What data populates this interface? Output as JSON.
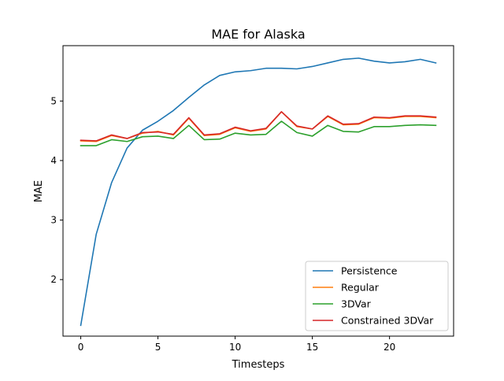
{
  "chart_data": {
    "type": "line",
    "title": "MAE for Alaska",
    "xlabel": "Timesteps",
    "ylabel": "MAE",
    "xlim": [
      -1.15,
      24.15
    ],
    "ylim": [
      1.05,
      5.93
    ],
    "xticks": [
      0,
      5,
      10,
      15,
      20
    ],
    "yticks": [
      2,
      3,
      4,
      5
    ],
    "legend_position": "lower-right",
    "grid": false,
    "x": [
      0,
      1,
      2,
      3,
      4,
      5,
      6,
      7,
      8,
      9,
      10,
      11,
      12,
      13,
      14,
      15,
      16,
      17,
      18,
      19,
      20,
      21,
      22,
      23
    ],
    "series": [
      {
        "name": "Persistence",
        "color": "#1f77b4",
        "values": [
          1.23,
          2.76,
          3.63,
          4.21,
          4.51,
          4.66,
          4.84,
          5.06,
          5.27,
          5.43,
          5.49,
          5.51,
          5.55,
          5.55,
          5.54,
          5.58,
          5.64,
          5.7,
          5.72,
          5.67,
          5.64,
          5.66,
          5.7,
          5.64
        ]
      },
      {
        "name": "Regular",
        "color": "#ff7f0e",
        "values": [
          4.33,
          4.32,
          4.42,
          4.37,
          4.46,
          4.49,
          4.43,
          4.71,
          4.42,
          4.44,
          4.55,
          4.49,
          4.53,
          4.82,
          4.57,
          4.53,
          4.74,
          4.6,
          4.61,
          4.72,
          4.71,
          4.74,
          4.74,
          4.72
        ]
      },
      {
        "name": "3DVar",
        "color": "#2ca02c",
        "values": [
          4.25,
          4.25,
          4.35,
          4.32,
          4.4,
          4.41,
          4.37,
          4.59,
          4.35,
          4.36,
          4.46,
          4.43,
          4.44,
          4.66,
          4.47,
          4.41,
          4.59,
          4.49,
          4.48,
          4.57,
          4.57,
          4.59,
          4.6,
          4.59
        ]
      },
      {
        "name": "Constrained 3DVar",
        "color": "#d62728",
        "values": [
          4.34,
          4.33,
          4.43,
          4.37,
          4.47,
          4.48,
          4.44,
          4.72,
          4.43,
          4.45,
          4.56,
          4.5,
          4.54,
          4.82,
          4.58,
          4.53,
          4.75,
          4.61,
          4.62,
          4.73,
          4.72,
          4.75,
          4.75,
          4.73
        ]
      }
    ]
  }
}
